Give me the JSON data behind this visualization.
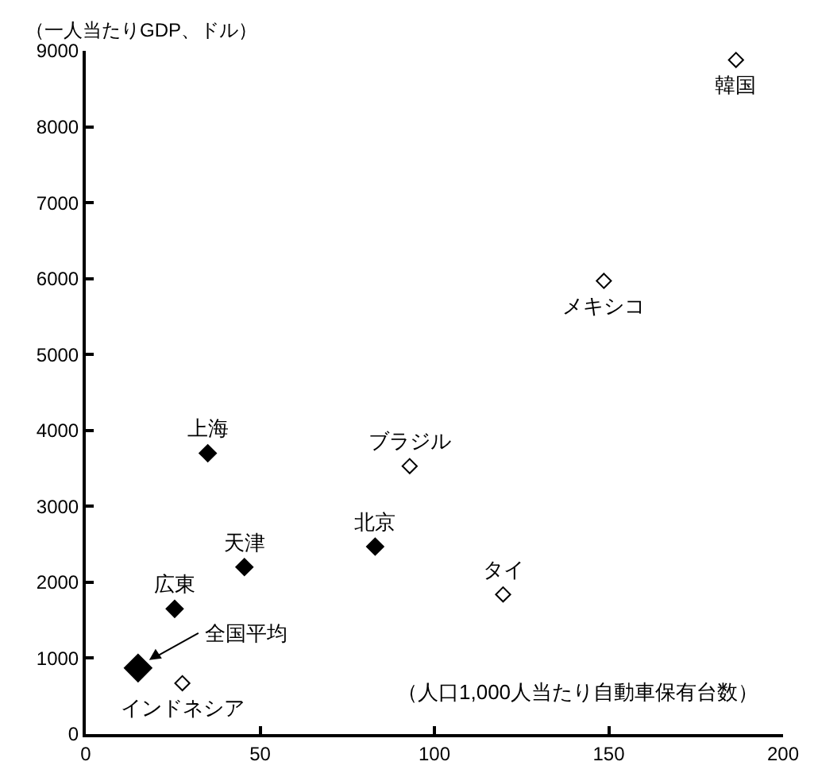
{
  "chart_data": {
    "type": "scatter",
    "ylabel": "（一人当たりGDP、ドル）",
    "xlabel": "（人口1,000人当たり自動車保有台数）",
    "xlim": [
      0,
      200
    ],
    "xticks": [
      0,
      50,
      100,
      150,
      200
    ],
    "ylim": [
      0,
      9000
    ],
    "yticks": [
      0,
      1000,
      2000,
      3000,
      4000,
      5000,
      6000,
      7000,
      8000,
      9000
    ],
    "marker": "diamond",
    "series": [
      {
        "color": "#000000",
        "x": [
          35,
          45.5,
          83,
          25.5
        ],
        "values": [
          3700,
          2200,
          2470,
          1650
        ]
      },
      {
        "color": "#000000",
        "x": [
          15
        ],
        "values": [
          870
        ]
      },
      {
        "color": "#ffffff",
        "x": [
          186.5,
          148.6,
          92.9,
          119.7,
          27.7
        ],
        "values": [
          8880,
          5970,
          3530,
          1840,
          670
        ]
      }
    ],
    "annotations": [
      {
        "text": "韓国",
        "x": 186.5,
        "y": 8880
      },
      {
        "text": "メキシコ",
        "x": 148.6,
        "y": 5970
      },
      {
        "text": "ブラジル",
        "x": 92.9,
        "y": 3530
      },
      {
        "text": "タイ",
        "x": 119.7,
        "y": 1840
      },
      {
        "text": "インドネシア",
        "x": 27.7,
        "y": 670
      },
      {
        "text": "上海",
        "x": 35,
        "y": 3700
      },
      {
        "text": "天津",
        "x": 45.5,
        "y": 2200
      },
      {
        "text": "北京",
        "x": 83,
        "y": 2470
      },
      {
        "text": "広東",
        "x": 25.5,
        "y": 1650
      },
      "全国平均"
    ]
  }
}
